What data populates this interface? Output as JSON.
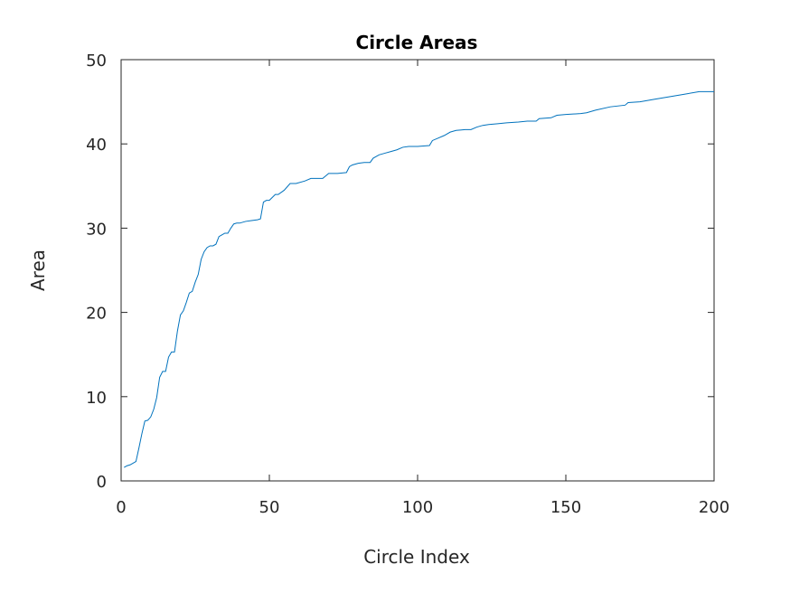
{
  "chart_data": {
    "type": "line",
    "title": "Circle Areas",
    "xlabel": "Circle Index",
    "ylabel": "Area",
    "xlim": [
      0,
      200
    ],
    "ylim": [
      0,
      50
    ],
    "xticks": [
      0,
      50,
      100,
      150,
      200
    ],
    "yticks": [
      0,
      10,
      20,
      30,
      40,
      50
    ],
    "grid": false,
    "series_color": "#0072bd",
    "series": [
      {
        "x": [
          1,
          2,
          3,
          4,
          5,
          6,
          7,
          8,
          9,
          10,
          11,
          12,
          13,
          14,
          15,
          16,
          17,
          18,
          19,
          20,
          21,
          22,
          23,
          24,
          25,
          26,
          27,
          28,
          29,
          30,
          31,
          32,
          33,
          34,
          35,
          36,
          37,
          38,
          39,
          40,
          42,
          44,
          46,
          47,
          48,
          49,
          50,
          52,
          53,
          55,
          57,
          59,
          62,
          64,
          66,
          68,
          70,
          71,
          73,
          76,
          77,
          78,
          80,
          82,
          84,
          85,
          87,
          89,
          91,
          93,
          95,
          97,
          100,
          104,
          105,
          107,
          109,
          111,
          113,
          116,
          118,
          120,
          122,
          124,
          127,
          130,
          134,
          137,
          140,
          141,
          145,
          147,
          150,
          155,
          157,
          160,
          165,
          170,
          171,
          175,
          180,
          185,
          190,
          195,
          200
        ],
        "y": [
          1.6,
          1.8,
          1.9,
          2.1,
          2.3,
          3.9,
          5.6,
          7.1,
          7.2,
          7.6,
          8.5,
          9.9,
          12.3,
          13.0,
          13.0,
          14.7,
          15.3,
          15.3,
          17.8,
          19.7,
          20.2,
          21.2,
          22.3,
          22.5,
          23.6,
          24.5,
          26.3,
          27.2,
          27.7,
          27.9,
          27.9,
          28.1,
          29.0,
          29.2,
          29.4,
          29.4,
          30.0,
          30.5,
          30.6,
          30.6,
          30.8,
          30.9,
          31.0,
          31.1,
          33.1,
          33.3,
          33.3,
          34.0,
          34.0,
          34.5,
          35.3,
          35.3,
          35.6,
          35.9,
          35.9,
          35.9,
          36.5,
          36.5,
          36.5,
          36.6,
          37.3,
          37.5,
          37.7,
          37.8,
          37.8,
          38.3,
          38.7,
          38.9,
          39.1,
          39.3,
          39.6,
          39.7,
          39.7,
          39.8,
          40.4,
          40.7,
          41.0,
          41.4,
          41.6,
          41.7,
          41.7,
          42.0,
          42.2,
          42.3,
          42.4,
          42.5,
          42.6,
          42.7,
          42.7,
          43.0,
          43.1,
          43.4,
          43.5,
          43.6,
          43.7,
          44.0,
          44.4,
          44.6,
          44.9,
          45.0,
          45.3,
          45.6,
          45.9,
          46.2,
          46.2
        ]
      }
    ]
  }
}
